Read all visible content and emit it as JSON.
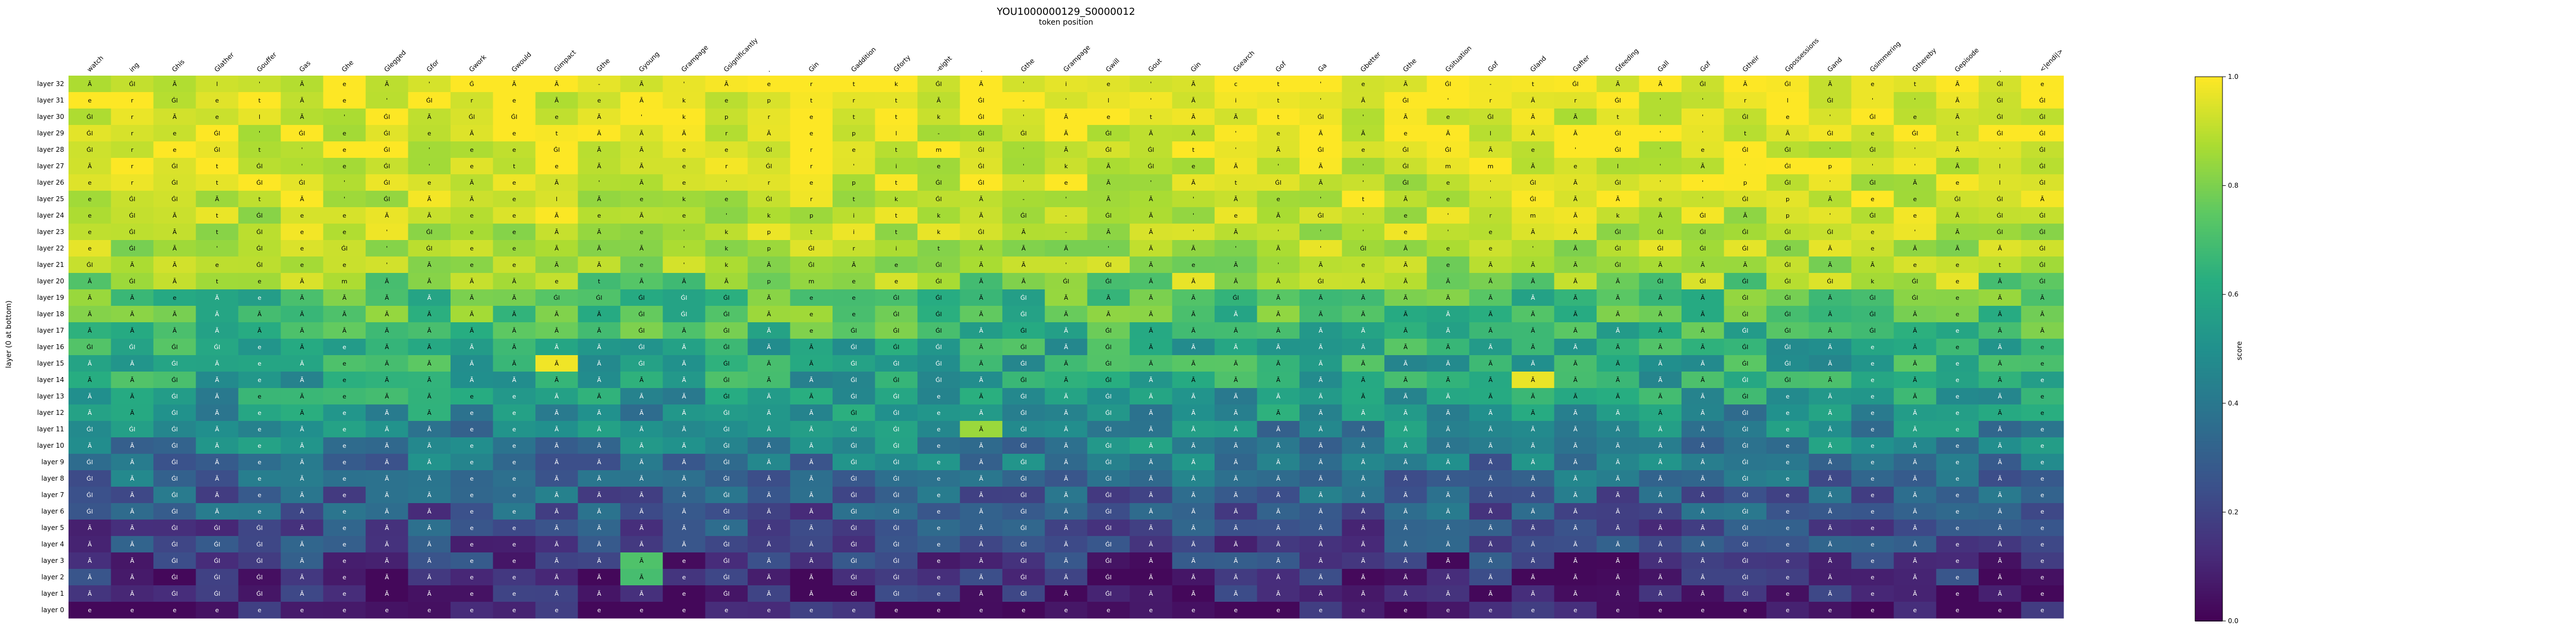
{
  "chart_data": {
    "type": "heatmap",
    "title": "YOU1000000129_S0000012",
    "xlabel": "token position",
    "ylabel": "layer (0 at bottom)",
    "colorbar_label": "score",
    "colormap": "viridis",
    "value_range": [
      0.0,
      1.0
    ],
    "colorbar_ticks": [
      "0.0",
      "0.2",
      "0.4",
      "0.6",
      "0.8",
      "1.0"
    ],
    "x_tokens": [
      "watch",
      "ing",
      "Ghis",
      "Glather",
      "Gouffer",
      "Gas",
      "Ghe",
      "Glegged",
      "Gfor",
      "Gwork",
      "Gwould",
      "Gimpact",
      "Gthe",
      "Gyoung",
      "Grampage",
      "Gsignificantly",
      ".",
      "Gin",
      "Gaddition",
      "Gforty",
      "-eight",
      ".",
      "Gthe",
      "Grampage",
      "Gwill",
      "Gout",
      "Gin",
      "Gsearch",
      "Gof",
      "Ga",
      "Gbetter",
      "Gthe",
      "Gsituation",
      "Gof",
      "Gland",
      "Gafter",
      "Gfeeding",
      "Gall",
      "Gof",
      "Gtheir",
      "Gpossessions",
      "Gand",
      "Gsimmering",
      "Gthereby",
      "Gepisode",
      ".",
      "<|endi|>"
    ],
    "y_labels": [
      "layer 32",
      "layer 31",
      "layer 30",
      "layer 29",
      "layer 28",
      "layer 27",
      "layer 26",
      "layer 25",
      "layer 24",
      "layer 23",
      "layer 22",
      "layer 21",
      "layer 20",
      "layer 19",
      "layer 18",
      "layer 17",
      "layer 16",
      "layer 15",
      "layer 14",
      "layer 13",
      "layer 12",
      "layer 11",
      "layer 10",
      "layer 9",
      "layer 8",
      "layer 7",
      "layer 6",
      "layer 5",
      "layer 4",
      "layer 3",
      "layer 2",
      "layer 1",
      "layer 0"
    ],
    "cell_text": [
      "Ã , Ġl , Ã , l , ' , Ã , e , Ã , ' , Ġ , Ã , Ã , - , Ã , ' , Ã , e , r , t , k , Ġl , Ã , ' , i , e , ' , Ã , c , t , ' , e , Ã , Ġl , - , t , Ġl , Ã , Ã , Ġl , Ã , Ġl , Ã , e , t , Ã , Ġl , e",
      "e , r , Ġl , e , t , Ã , e , ' , Ġl , r , e , Ã , e , Ã , k , e , p , t , r , t , Ã , Ġl , - , ' , l , ' , Ã , i , t , ' , Ã , Ġl , ' , r , Ã , r , Ġl , ' , ' , r , l , Ġl , ' , ' , Ã , Ġl , Ġl",
      "Ġl , r , Ã , e , l , Ã , ' , Ġl , Ã , Ġl , Ġl , e , Ã , ' , k , p , r , e , t , t , k , Ġl , ' , Ã , e , t , Ã , Ã , t , Ġl , ' , Ã , e , Ġl , Ã , Ã , t , ' , ' , Ġl , e , ' , Ġl , e , Ã , Ġl , Ġl",
      "Ġl , r , e , Ġl , ' , Ġl , e , Ġl , e , Ã , e , t , Ã , Ã , Ã , r , Ã , e , p , l , - , Ġl , Ġl , Ã , Ġl , Ã , Ã , ' , e , Ã , Ã , e , Ã , l , Ã , Ã , Ġl , ' , ' , t , Ã , Ġl , e , Ġl , t , Ġl , Ġl",
      "Ġl , r , e , Ġl , t , ' , e , Ġl , ' , e , e , Ġl , Ã , Ã , e , e , Ġl , r , e , t , m , Ġl , ' , Ã , Ġl , Ġl , t , ' , Ã , Ġl , e , Ġl , Ġl , Ã , e , ' , Ġl , ' , e , Ġl , Ġl , ' , Ġl , ' , Ã , ' , Ġl",
      "Ã , r , Ġl , t , Ġl , ' , e , Ġl , ' , e , t , e , Ã , Ã , e , r , Ġl , r , ' , i , e , Ġl , ' , k , Ã , Ġl , e , Ã , ' , Ã , ' , Ġl , m , m , Ã , e , l , ' , Ã , ' , Ġl , p , ' , ' , Ã , l , Ġl",
      "e , r , Ġl , t , Ġl , Ġl , ' , Ġl , e , Ã , e , Ã , ' , Ã , e , ' , r , e , p , t , Ġl , Ġl , ' , e , Ã , ' , Ã , t , Ġl , Ã , ' , Ġl , e , ' , Ġl , Ã , Ġl , ' , ' , p , Ġl , ' , Ġl , Ã , e , l , Ġl",
      "e , Ġl , Ġl , Ã , t , Ã , ' , Ġl , Ã , Ã , e , l , Ã , e , k , e , Ġl , r , t , k , Ġl , Ã , - , ' , Ã , Ã , ' , Ã , e , ' , t , Ã , e , ' , Ġl , Ã , Ã , e , ' , Ġl , p , Ã , e , e , Ġl , Ġl , Ã",
      "e , Ġl , Ã , t , Ġl , e , e , Ã , Ã , e , e , Ã , e , Ã , e , ' , k , p , i , t , k , Ã , Ġl , - , Ġl , Ã , ' , e , Ã , Ġl , ' , e , ' , r , m , Ã , k , Ã , Ġl , Ã , p , ' , Ġl , e , Ã , Ġl , Ġl",
      "e , Ġl , Ã , t , Ġl , e , e , ' , Ġl , e , e , Ã , Ã , e , ' , k , p , t , i , t , k , Ġl , Ã , - , Ã , Ã , ' , Ã , ' , ' , ' , e , ' , e , Ã , Ã , Ġl , Ġl , Ġl , Ġl , Ġl , Ġl , e , ' , Ã , Ġl , Ġl",
      "e , Ġl , Ã , ' , Ġl , e , Ġl , ' , Ġl , e , e , Ã , Ã , Ã , ' , k , p , Ġl , r , i , t , Ã , Ã , Ã , ' , Ã , Ã , ' , Ã , ' , Ġl , Ã , e , e , ' , Ã , Ġl , Ġl , Ġl , Ġl , Ġl , Ã , e , Ã , Ã , Ã , Ġl",
      "Ġl , Ã , Ã , e , Ġl , e , e , ' , Ã , e , e , Ã , Ã , e , ' , k , Ã , Ġl , Ã , e , Ġl , Ã , Ã , ' , Ġl , Ã , e , Ã , ' , Ã , e , Ã , e , Ã , Ã , Ã , Ġl , Ã , Ã , Ã , Ġl , Ã , Ã , e , e , t , Ġl",
      "Ã , Ġl , Ã , t , e , Ã , m , Ã , Ã , Ã , Ã , e , t , Ã , Ã , Ã , p , m , e , e , Ġl , Ã , Ã , Ġl , Ġl , Ã , Ã , Ã , Ã , Ġl , Ã , Ã , Ã , Ã , Ã , Ã , Ã , Ġl , Ġl , Ġl , Ġl , Ġl , k , Ġl , e , Ã , Ġl",
      "Ã , Ã , e , Ã , e , Ã , Ã , Ã , Ã , Ã , Ã , Ġl , Ġl , Ġl , Ġl , Ġl , Ã , e , e , Ġl , Ġl , Ã , Ġl , Ã , Ã , Ã , Ã , Ġl , Ã , Ã , Ã , Ã , Ã , Ã , Ã , Ã , Ã , Ã , Ã , Ġl , Ġl , Ã , Ġl , Ġl , e , Ã , Ã",
      "Ã , Ã , Ã , Ã , Ã , Ã , Ã , Ã , Ã , Ã , Ã , Ã , Ã , Ġl , Ġl , Ġl , Ã , e , e , Ġl , Ġl , Ã , Ġl , Ã , Ã , Ã , Ã , Ã , Ã , Ã , Ã , Ã , Ã , Ã , Ã , Ã , Ã , Ã , Ã , Ġl , Ġl , Ã , Ġl , Ã , e , Ã , Ã",
      "Ã , Ã , Ã , Ã , Ã , Ã , Ã , Ã , Ã , Ã , Ã , Ã , Ã , Ġl , Ã , Ġl , Ã , e , Ġl , Ġl , Ġl , Ã , Ġl , Ã , Ġl , Ã , Ã , Ã , Ã , Ã , Ã , Ã , Ã , Ã , Ã , Ã , Ã , Ã , Ã , Ġl , Ġl , Ã , Ġl , Ã , e , Ã , Ã",
      "Ġl , Ġl , Ġl , Ġl , e , Ã , e , Ã , Ã , Ã , Ã , Ã , Ã , Ġl , Ã , Ġl , Ã , Ã , Ġl , Ġl , Ġl , Ã , Ġl , Ã , Ġl , Ã , Ã , Ã , Ã , Ã , Ã , Ã , Ã , Ã , Ã , Ã , Ã , Ã , Ã , Ġl , Ġl , Ã , e , Ã , e , Ã , e",
      "Ã , Ã , Ġl , Ã , e , Ã , e , Ã , Ã , Ã , Ã , Ã , Ã , Ġl , Ã , Ġl , Ã , Ã , Ġl , Ġl , Ġl , Ã , Ġl , Ã , Ġl , Ã , Ã , Ã , Ã , Ã , Ã , Ã , Ã , Ã , Ã , Ã , Ã , Ã , Ã , Ġl , Ġl , Ã , e , Ã , e , Ã , e",
      "Ã , Ã , Ġl , Ã , e , Ã , e , Ã , Ã , Ã , Ã , Ã , Ã , Ã , Ã , Ġl , Ã , Ã , Ġl , Ġl , Ġl , Ã , Ġl , Ã , Ġl , Ã , Ã , Ã , Ã , Ã , Ã , Ã , Ã , Ã , Ã , Ã , Ã , Ã , Ã , Ġl , Ġl , Ã , e , Ã , e , Ã , e",
      "Ã , Ã , Ġl , Ã , e , Ã , e , Ã , Ã , e , e , Ã , Ã , Ã , Ã , Ġl , Ã , Ã , Ġl , Ġl , e , Ã , Ġl , Ã , Ġl , Ã , Ã , Ã , Ã , Ã , Ã , Ã , Ã , Ã , Ã , Ã , Ã , Ã , Ã , Ġl , e , Ã , e , Ã , e , Ã , e",
      "Ã , Ã , Ġl , Ã , e , Ã , e , Ã , Ã , e , e , Ã , Ã , Ã , Ã , Ġl , Ã , Ã , Ġl , Ġl , e , Ã , Ġl , Ã , Ġl , Ã , Ã , Ã , Ã , Ã , Ã , Ã , Ã , Ã , Ã , Ã , Ã , Ã , Ã , Ġl , e , Ã , e , Ã , e , Ã , e",
      "Ġl , Ġl , Ġl , Ã , e , Ã , e , Ã , Ã , e , e , Ã , Ã , Ã , Ã , Ġl , Ã , Ã , Ġl , Ġl , e , Ã , Ġl , Ã , Ġl , Ã , Ã , Ã , Ã , Ã , Ã , Ã , Ã , Ã , Ã , Ã , Ã , Ã , Ã , Ġl , e , Ã , e , Ã , e , Ã , e",
      "Ã , Ã , Ġl , Ã , e , Ã , e , Ã , Ã , e , e , Ã , Ã , Ã , Ã , Ġl , Ã , Ã , Ġl , Ġl , e , Ã , Ġl , Ã , Ġl , Ã , Ã , Ã , Ã , Ã , Ã , Ã , Ã , Ã , Ã , Ã , Ã , Ã , Ã , Ġl , e , Ã , e , Ã , e , Ã , e",
      "Ġl , Ã , Ġl , Ã , e , Ã , e , Ã , Ã , e , e , Ã , Ã , Ã , Ã , Ġl , Ã , Ã , Ġl , Ġl , e , Ã , Ġl , Ã , Ġl , Ã , Ã , Ã , Ã , Ã , Ã , Ã , Ã , Ã , Ã , Ã , Ã , Ã , Ã , Ġl , e , Ã , e , Ã , e , Ã , e",
      "Ġl , Ã , Ġl , Ã , e , Ã , e , Ã , Ã , e , e , Ã , Ã , Ã , Ã , Ġl , Ã , Ã , Ġl , Ġl , e , Ã , Ġl , Ã , Ġl , Ã , Ã , Ã , Ã , Ã , Ã , Ã , Ã , Ã , Ã , Ã , Ã , Ã , Ã , Ġl , e , Ã , e , Ã , e , Ã , e",
      "Ġl , Ã , Ġl , Ã , e , Ã , e , Ã , Ã , e , e , Ã , Ã , Ã , Ã , Ġl , Ã , Ã , Ġl , Ġl , e , Ã , Ġl , Ã , Ġl , Ã , Ã , Ã , Ã , Ã , Ã , Ã , Ã , Ã , Ã , Ã , Ã , Ã , Ã , Ġl , e , Ã , e , Ã , e , Ã , e",
      "Ġl , Ã , Ġl , Ã , e , Ã , e , Ã , Ã , e , e , Ã , Ã , Ã , Ã , Ġl , Ã , Ã , Ġl , Ġl , e , Ã , Ġl , Ã , Ġl , Ã , Ã , Ã , Ã , Ã , Ã , Ã , Ã , Ã , Ã , Ã , Ã , Ã , Ã , Ġl , e , Ã , e , Ã , e , Ã , e",
      "Ã , Ã , Ġl , Ġl , Ġl , Ã , e , Ã , Ã , e , e , Ã , Ã , Ã , Ã , Ġl , Ã , Ã , Ġl , Ġl , e , Ã , Ġl , Ã , Ġl , Ã , Ã , Ã , Ã , Ã , Ã , Ã , Ã , Ã , Ã , Ã , Ã , Ã , Ã , Ġl , e , Ã , e , Ã , e , Ã , e",
      "Ã , Ã , Ġl , Ġl , Ġl , Ã , e , Ã , Ã , e , e , Ã , Ã , Ã , Ã , Ġl , Ã , Ã , Ġl , Ġl , e , Ã , Ġl , Ã , Ġl , Ã , Ã , Ã , Ã , Ã , Ã , Ã , Ã , Ã , Ã , Ã , Ã , Ã , Ã , Ġl , e , Ã , e , Ã , e , Ã , e",
      "Ã , Ã , Ġl , Ġl , Ġl , Ã , e , Ã , Ã , e , e , Ã , Ã , Ã , e , Ġl , Ã , Ã , Ġl , Ġl , e , Ã , Ġl , Ã , Ġl , Ã , Ã , Ã , Ã , Ã , Ã , Ã , Ã , Ã , Ã , Ã , Ã , Ã , Ã , Ġl , e , Ã , e , Ã , e , Ã , e",
      "Ã , Ã , Ġl , Ġl , Ġl , Ã , e , Ã , Ã , e , e , Ã , Ã , Ã , e , Ġl , Ã , Ã , Ġl , Ġl , e , Ã , Ġl , Ã , Ġl , Ã , Ã , Ã , Ã , Ã , Ã , Ã , Ã , Ã , Ã , Ã , Ã , Ã , Ã , Ġl , e , Ã , e , Ã , e , Ã , e",
      "Ã , Ã , Ġl , Ġl , Ġl , Ã , e , Ã , Ã , e , e , Ã , Ã , Ã , e , Ġl , Ã , Ã , Ġl , Ġl , e , Ã , Ġl , Ã , Ġl , Ã , Ã , Ã , Ã , Ã , Ã , Ã , Ã , Ã , Ã , Ã , Ã , Ã , Ã , Ġl , e , Ã , e , Ã , e , Ã , e",
      "e , e , e , e , e , e , e , e , e , e , e , e , e , e , e , e , e , e , e , e , e , e , e , e , e , e , e , e , e , e , e , e , e , e , e , e , e , e , e , e , e , e , e , e , e , e , e"
    ],
    "row_profile": [
      0.97,
      0.97,
      0.96,
      0.95,
      0.95,
      0.94,
      0.93,
      0.92,
      0.91,
      0.9,
      0.88,
      0.86,
      0.82,
      0.7,
      0.72,
      0.66,
      0.6,
      0.6,
      0.58,
      0.55,
      0.5,
      0.46,
      0.44,
      0.38,
      0.34,
      0.3,
      0.27,
      0.24,
      0.2,
      0.16,
      0.12,
      0.09,
      0.05
    ],
    "highlights": [
      {
        "row": 29,
        "col": 13,
        "value": 0.72
      },
      {
        "row": 30,
        "col": 13,
        "value": 0.7
      },
      {
        "row": 17,
        "col": 11,
        "value": 0.98
      },
      {
        "row": 18,
        "col": 34,
        "value": 0.97
      },
      {
        "row": 21,
        "col": 21,
        "value": 0.85
      }
    ]
  }
}
